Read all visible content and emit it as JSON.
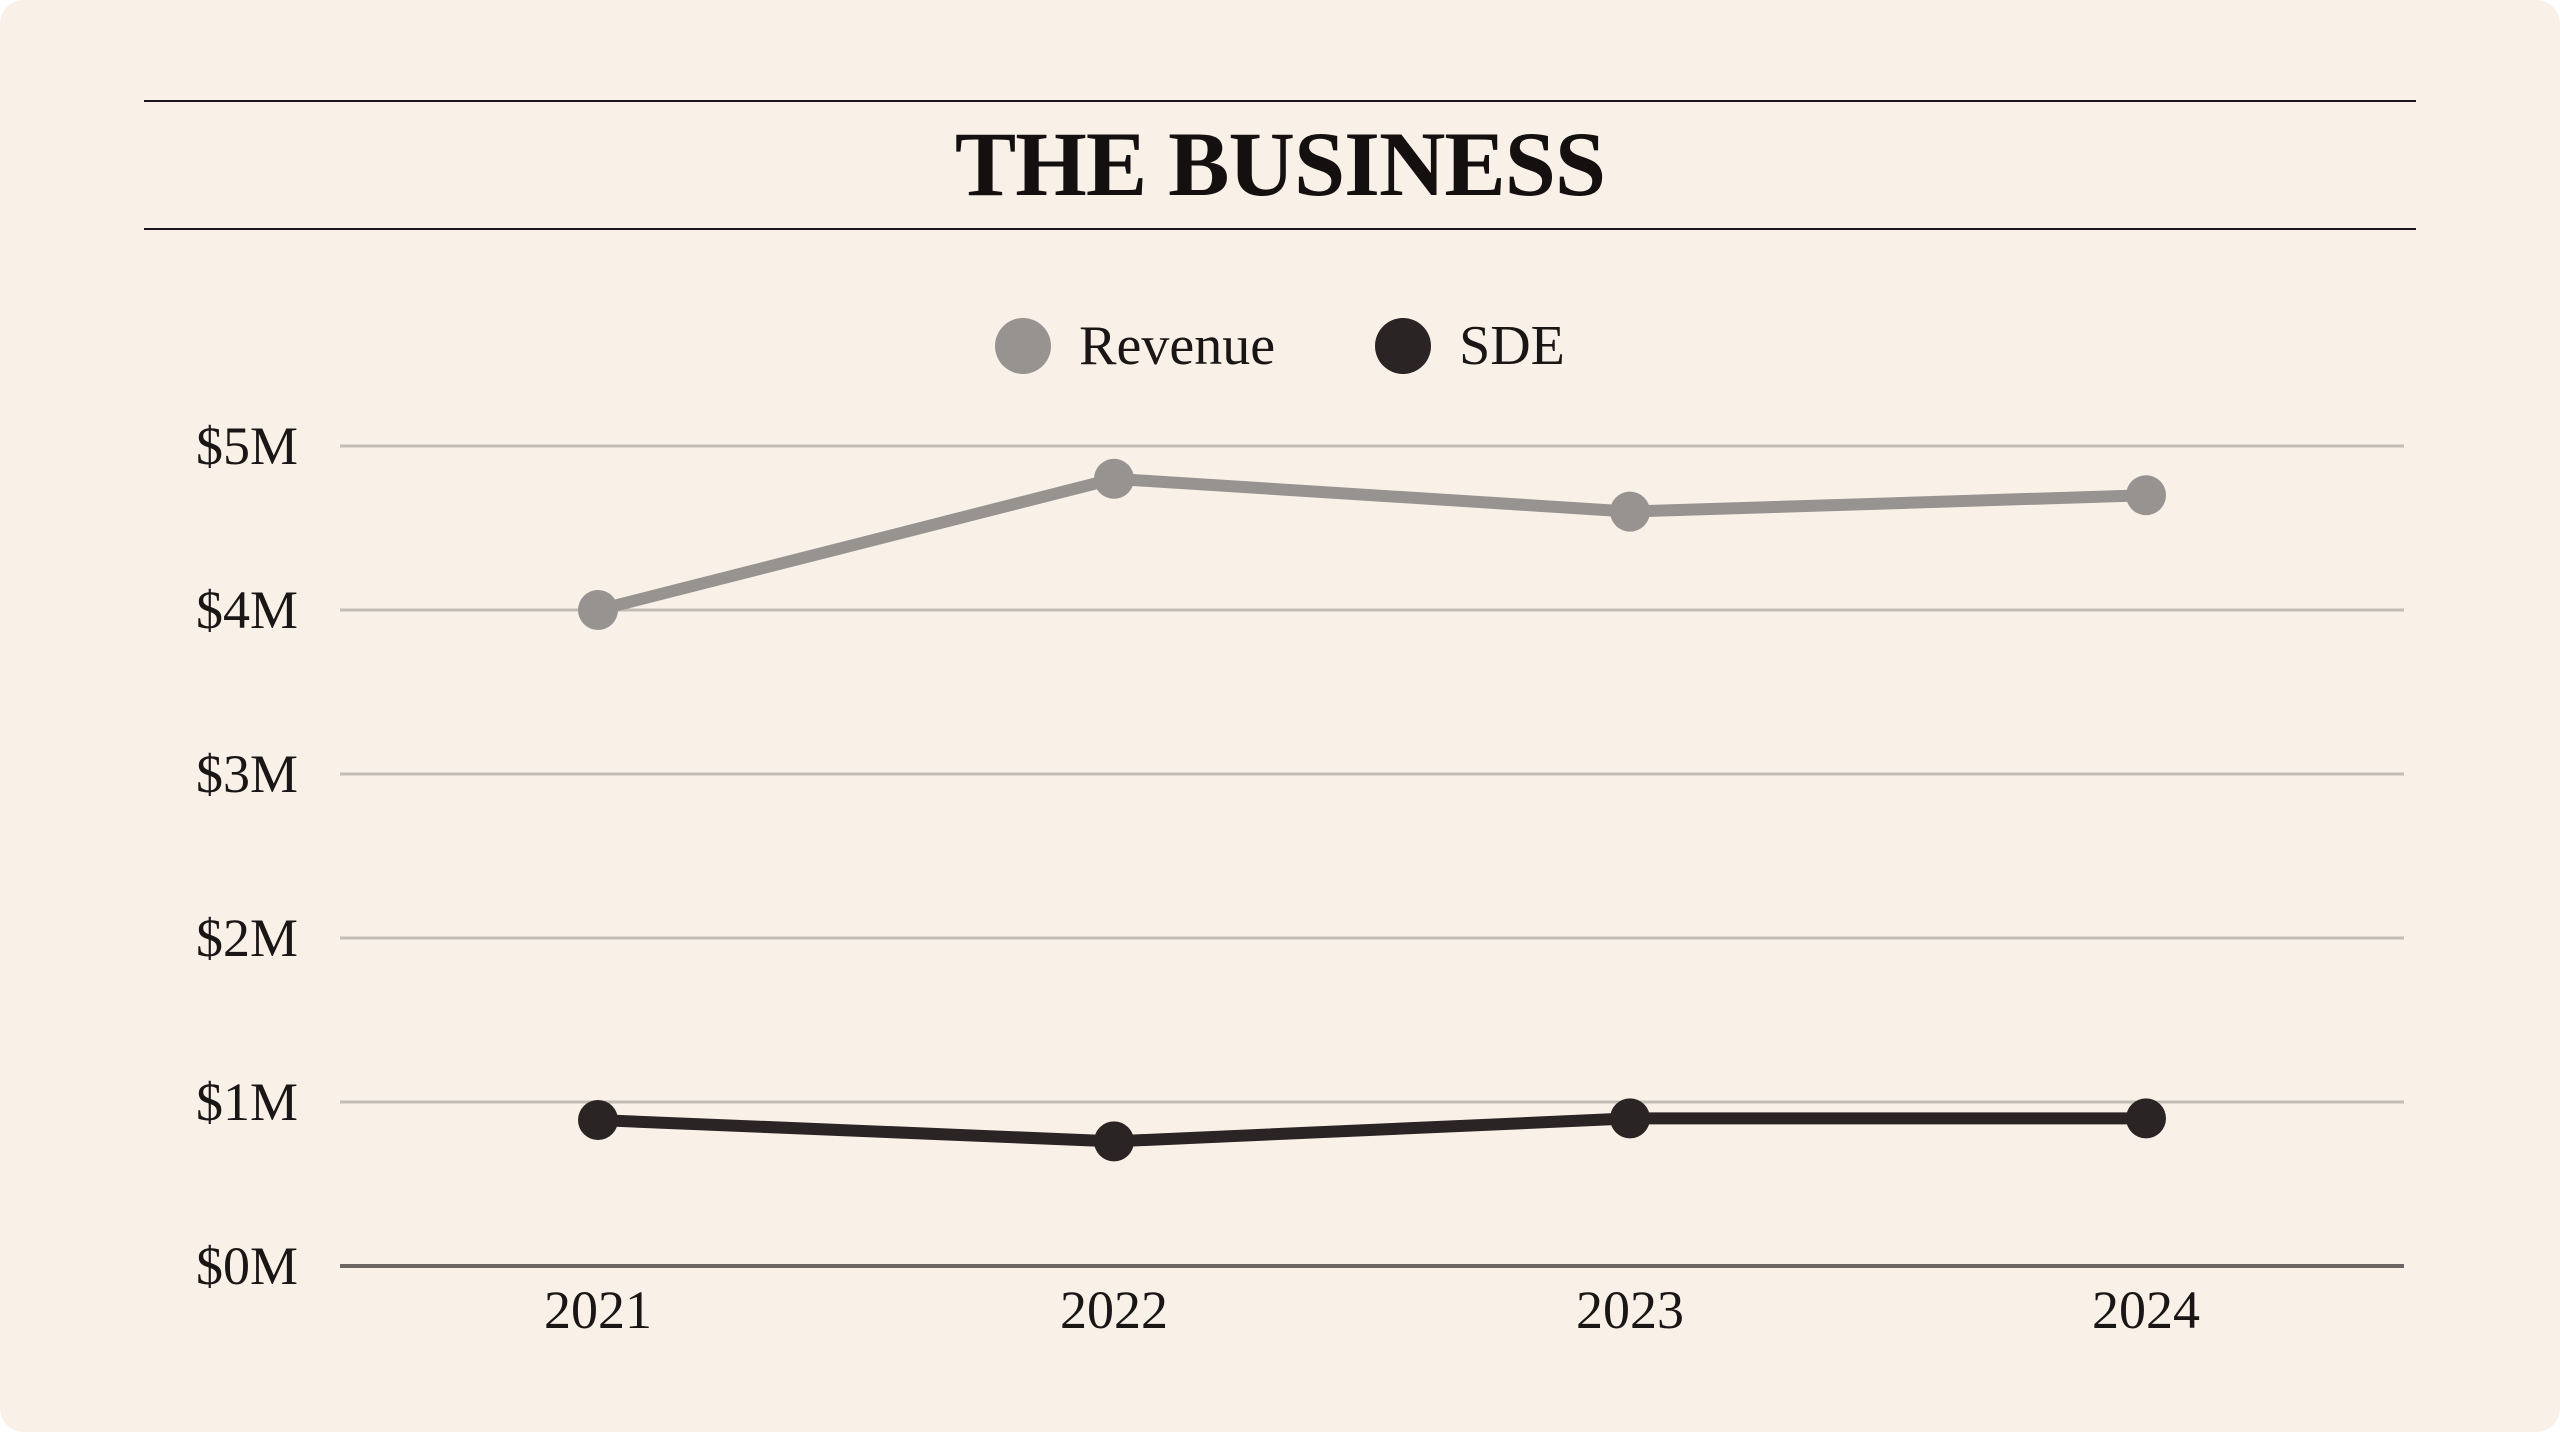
{
  "header": {
    "title": "THE BUSINESS"
  },
  "colors": {
    "background": "#f9f1e8",
    "revenue": "#979391",
    "sde": "#2a2424",
    "gridline": "#c4bdb6",
    "baseline": "#6b6563",
    "text": "#1a1616"
  },
  "chart_data": {
    "type": "line",
    "title": "THE BUSINESS",
    "xlabel": "",
    "ylabel": "",
    "categories": [
      "2021",
      "2022",
      "2023",
      "2024"
    ],
    "ylim": [
      0,
      5
    ],
    "yticks": [
      0,
      1,
      2,
      3,
      4,
      5
    ],
    "ytick_labels": [
      "$0M",
      "$1M",
      "$2M",
      "$3M",
      "$4M",
      "$5M"
    ],
    "unit": "$M",
    "grid": true,
    "legend_position": "top-center",
    "series": [
      {
        "name": "Revenue",
        "color": "#979391",
        "values": [
          4.0,
          4.8,
          4.6,
          4.7
        ]
      },
      {
        "name": "SDE",
        "color": "#2a2424",
        "values": [
          0.89,
          0.76,
          0.9,
          0.9
        ]
      }
    ]
  }
}
